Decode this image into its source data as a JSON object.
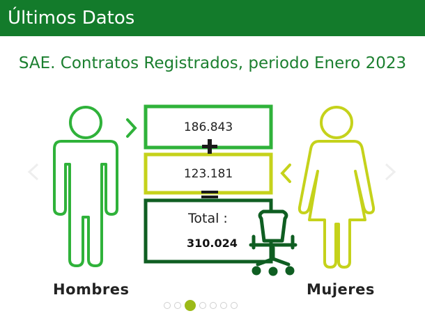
{
  "header": {
    "title": "Últimos Datos"
  },
  "subtitle": "SAE. Contratos Registrados, periodo Enero 2023",
  "infographic": {
    "hombres_value": "186.843",
    "mujeres_value": "123.181",
    "plus_symbol": "+",
    "equals_symbol": "=",
    "total_label": "Total :",
    "total_value": "310.024",
    "hombres_label": "Hombres",
    "mujeres_label": "Mujeres"
  },
  "colors": {
    "header_bg": "#137b2b",
    "hombres": "#2fb23a",
    "mujeres": "#c5d21b",
    "total": "#0f5e22",
    "active_dot": "#9cba17"
  },
  "carousel": {
    "slide_count": 7,
    "active_index": 2
  }
}
